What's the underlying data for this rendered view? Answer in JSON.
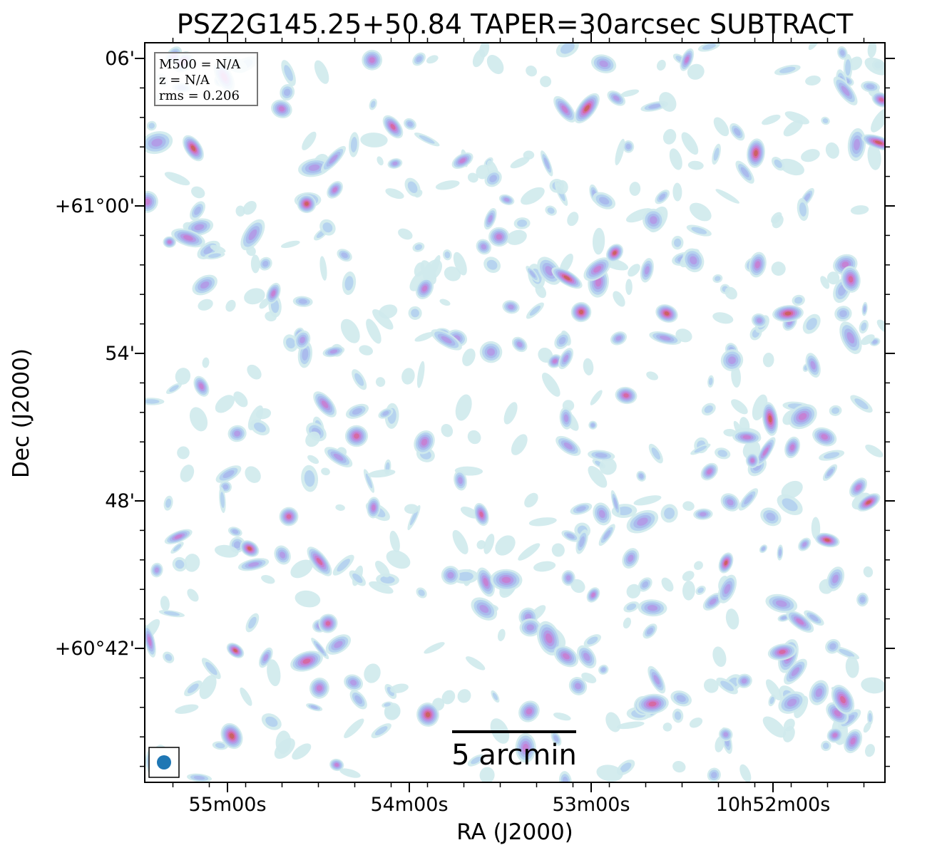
{
  "chart_data": {
    "type": "heatmap",
    "title": "PSZ2G145.25+50.84 TAPER=30arcsec SUBTRACT",
    "xlabel": "RA (J2000)",
    "ylabel": "Dec (J2000)",
    "x_ticks": [
      {
        "label": "55m00s",
        "ra_s": 0
      },
      {
        "label": "54m00s",
        "ra_s": 60
      },
      {
        "label": "53m00s",
        "ra_s": 120
      },
      {
        "label": "10h52m00s",
        "ra_s": 180
      }
    ],
    "y_ticks": [
      {
        "label": "06'",
        "dec_arcmin": 6
      },
      {
        "label": "+61°00'",
        "dec_arcmin": 0
      },
      {
        "label": "54'",
        "dec_arcmin": -6
      },
      {
        "label": "48'",
        "dec_arcmin": -12
      },
      {
        "label": "+60°42'",
        "dec_arcmin": -18
      }
    ],
    "info_box": [
      "M500 = N/A",
      "z = N/A",
      "rms = 0.206"
    ],
    "scalebar_label": "5 arcmin",
    "colormap": [
      "#ffffff",
      "#cfeaec",
      "#b3d0ee",
      "#a8b8ec",
      "#b39ae6",
      "#c77fd2",
      "#d6679e",
      "#c9625c"
    ],
    "beam_color": "#1f77b4"
  }
}
